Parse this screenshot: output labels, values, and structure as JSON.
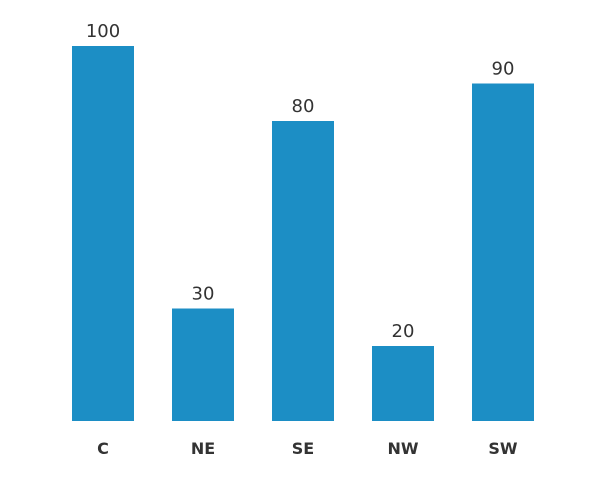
{
  "chart_data": {
    "type": "bar",
    "categories": [
      "C",
      "NE",
      "SE",
      "NW",
      "SW"
    ],
    "values": [
      100,
      30,
      80,
      20,
      90
    ],
    "title": "",
    "xlabel": "",
    "ylabel": "",
    "ylim": [
      0,
      100
    ],
    "grid": false,
    "legend": "none",
    "data_labels": true
  },
  "colors": {
    "bar": "#1c8ec5",
    "text": "#333333",
    "background": "#ffffff"
  }
}
